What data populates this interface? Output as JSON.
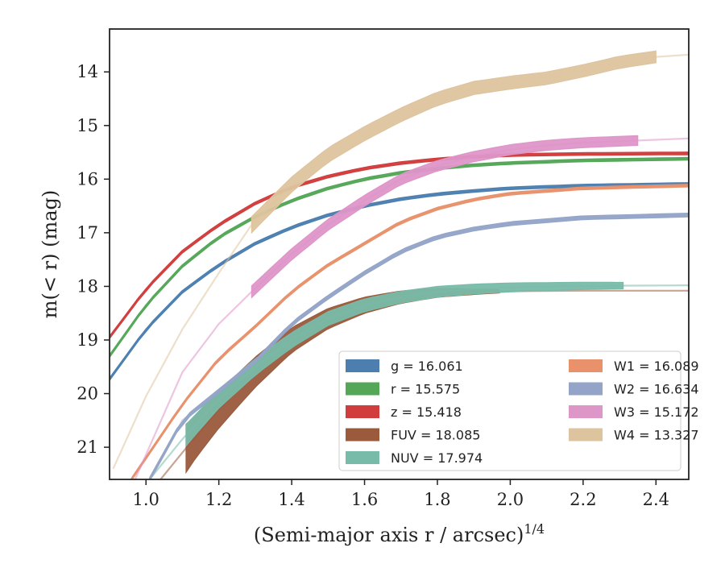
{
  "chart_data": {
    "type": "line",
    "title": "",
    "xlabel": "(Semi-major axis r / arcsec)",
    "xlabel_exponent": "1/4",
    "ylabel": "m(< r) (mag)",
    "xlim": [
      0.9,
      2.49
    ],
    "ylim": [
      21.6,
      13.2
    ],
    "y_inverted": true,
    "x_ticks": [
      1.0,
      1.2,
      1.4,
      1.6,
      1.8,
      2.0,
      2.2,
      2.4
    ],
    "x_tick_labels": [
      "1.0",
      "1.2",
      "1.4",
      "1.6",
      "1.8",
      "2.0",
      "2.2",
      "2.4"
    ],
    "y_ticks": [
      14,
      15,
      16,
      17,
      18,
      19,
      20,
      21
    ],
    "y_tick_labels": [
      "14",
      "15",
      "16",
      "17",
      "18",
      "19",
      "20",
      "21"
    ],
    "grid": false,
    "legend_position": "lower-right",
    "legend_columns": 2,
    "series": [
      {
        "name": "g = 16.061",
        "band": "g",
        "total_mag": 16.061,
        "color": "#4c7fb0",
        "fit": [
          [
            0.9,
            19.73
          ],
          [
            1.0,
            18.8
          ],
          [
            1.1,
            18.1
          ],
          [
            1.2,
            17.6
          ],
          [
            1.3,
            17.2
          ],
          [
            1.4,
            16.9
          ],
          [
            1.5,
            16.67
          ],
          [
            1.6,
            16.5
          ],
          [
            1.7,
            16.37
          ],
          [
            1.8,
            16.28
          ],
          [
            1.9,
            16.22
          ],
          [
            2.0,
            16.17
          ],
          [
            2.2,
            16.12
          ],
          [
            2.49,
            16.09
          ]
        ],
        "band_start": 0.9,
        "band_end": 2.49,
        "band_width": [
          0.05,
          0.05
        ]
      },
      {
        "name": "r = 15.575",
        "band": "r",
        "total_mag": 15.575,
        "color": "#55a758",
        "fit": [
          [
            0.9,
            19.3
          ],
          [
            1.0,
            18.35
          ],
          [
            1.1,
            17.62
          ],
          [
            1.2,
            17.08
          ],
          [
            1.3,
            16.7
          ],
          [
            1.4,
            16.4
          ],
          [
            1.5,
            16.17
          ],
          [
            1.6,
            16.0
          ],
          [
            1.7,
            15.88
          ],
          [
            1.8,
            15.8
          ],
          [
            1.9,
            15.74
          ],
          [
            2.0,
            15.7
          ],
          [
            2.2,
            15.65
          ],
          [
            2.49,
            15.62
          ]
        ],
        "band_start": 0.9,
        "band_end": 2.49,
        "band_width": [
          0.05,
          0.05
        ]
      },
      {
        "name": "z = 15.418",
        "band": "z",
        "total_mag": 15.418,
        "color": "#d13d3d",
        "fit": [
          [
            0.9,
            18.95
          ],
          [
            1.0,
            18.05
          ],
          [
            1.1,
            17.35
          ],
          [
            1.2,
            16.85
          ],
          [
            1.3,
            16.45
          ],
          [
            1.4,
            16.15
          ],
          [
            1.5,
            15.95
          ],
          [
            1.6,
            15.8
          ],
          [
            1.7,
            15.7
          ],
          [
            1.8,
            15.63
          ],
          [
            1.9,
            15.58
          ],
          [
            2.0,
            15.55
          ],
          [
            2.2,
            15.53
          ],
          [
            2.49,
            15.52
          ]
        ],
        "band_start": 0.9,
        "band_end": 2.49,
        "band_width": [
          0.05,
          0.05
        ]
      },
      {
        "name": "FUV = 18.085",
        "band": "FUV",
        "total_mag": 18.085,
        "color": "#9b5a3c",
        "fit": [
          [
            1.04,
            21.6
          ],
          [
            1.1,
            21.1
          ],
          [
            1.2,
            20.3
          ],
          [
            1.3,
            19.6
          ],
          [
            1.4,
            19.0
          ],
          [
            1.5,
            18.6
          ],
          [
            1.6,
            18.35
          ],
          [
            1.7,
            18.2
          ],
          [
            1.8,
            18.12
          ],
          [
            1.9,
            18.1
          ],
          [
            2.0,
            18.09
          ],
          [
            2.2,
            18.08
          ],
          [
            2.49,
            18.08
          ]
        ],
        "band_start": 1.11,
        "band_end": 1.97,
        "band_width": [
          0.9,
          0.06
        ]
      },
      {
        "name": "NUV = 17.974",
        "band": "NUV",
        "total_mag": 17.974,
        "color": "#78bba8",
        "fit": [
          [
            1.01,
            21.6
          ],
          [
            1.1,
            20.85
          ],
          [
            1.2,
            20.1
          ],
          [
            1.3,
            19.5
          ],
          [
            1.4,
            19.0
          ],
          [
            1.5,
            18.6
          ],
          [
            1.6,
            18.35
          ],
          [
            1.7,
            18.2
          ],
          [
            1.8,
            18.1
          ],
          [
            1.9,
            18.05
          ],
          [
            2.0,
            18.02
          ],
          [
            2.2,
            17.99
          ],
          [
            2.49,
            17.98
          ]
        ],
        "band_start": 1.11,
        "band_end": 2.31,
        "band_width": [
          0.4,
          0.12
        ]
      },
      {
        "name": "W1 = 16.089",
        "band": "W1",
        "total_mag": 16.089,
        "color": "#e8916b",
        "fit": [
          [
            0.96,
            21.6
          ],
          [
            1.1,
            20.2
          ],
          [
            1.2,
            19.35
          ],
          [
            1.3,
            18.75
          ],
          [
            1.4,
            18.1
          ],
          [
            1.5,
            17.6
          ],
          [
            1.6,
            17.2
          ],
          [
            1.7,
            16.8
          ],
          [
            1.8,
            16.55
          ],
          [
            1.9,
            16.38
          ],
          [
            2.0,
            16.27
          ],
          [
            2.2,
            16.17
          ],
          [
            2.49,
            16.12
          ]
        ],
        "band_start": 0.96,
        "band_end": 2.49,
        "band_width": [
          0.05,
          0.05
        ]
      },
      {
        "name": "W2 = 16.634",
        "band": "W2",
        "total_mag": 16.634,
        "color": "#93a4c8",
        "fit": [
          [
            1.01,
            21.6
          ],
          [
            1.1,
            20.5
          ],
          [
            1.2,
            19.95
          ],
          [
            1.3,
            19.4
          ],
          [
            1.4,
            18.7
          ],
          [
            1.5,
            18.2
          ],
          [
            1.6,
            17.75
          ],
          [
            1.7,
            17.35
          ],
          [
            1.8,
            17.08
          ],
          [
            1.9,
            16.93
          ],
          [
            2.0,
            16.83
          ],
          [
            2.2,
            16.72
          ],
          [
            2.49,
            16.67
          ]
        ],
        "band_start": 1.01,
        "band_end": 2.49,
        "band_width": [
          0.07,
          0.07
        ]
      },
      {
        "name": "W3 = 15.172",
        "band": "W3",
        "total_mag": 15.172,
        "color": "#de95c8",
        "fit": [
          [
            0.97,
            21.6
          ],
          [
            1.1,
            19.6
          ],
          [
            1.2,
            18.7
          ],
          [
            1.29,
            18.1
          ],
          [
            1.4,
            17.4
          ],
          [
            1.5,
            16.85
          ],
          [
            1.6,
            16.4
          ],
          [
            1.7,
            16.0
          ],
          [
            1.8,
            15.75
          ],
          [
            1.9,
            15.58
          ],
          [
            2.0,
            15.45
          ],
          [
            2.1,
            15.37
          ],
          [
            2.2,
            15.32
          ],
          [
            2.35,
            15.28
          ],
          [
            2.49,
            15.24
          ]
        ],
        "band_start": 1.29,
        "band_end": 2.35,
        "band_width": [
          0.22,
          0.18
        ]
      },
      {
        "name": "W4 = 13.327",
        "band": "W4",
        "total_mag": 13.327,
        "color": "#dec49e",
        "fit": [
          [
            0.91,
            21.4
          ],
          [
            1.0,
            20.05
          ],
          [
            1.1,
            18.8
          ],
          [
            1.2,
            17.75
          ],
          [
            1.29,
            16.85
          ],
          [
            1.4,
            16.1
          ],
          [
            1.5,
            15.55
          ],
          [
            1.6,
            15.15
          ],
          [
            1.7,
            14.8
          ],
          [
            1.8,
            14.5
          ],
          [
            1.9,
            14.3
          ],
          [
            2.0,
            14.2
          ],
          [
            2.1,
            14.12
          ],
          [
            2.2,
            13.98
          ],
          [
            2.3,
            13.82
          ],
          [
            2.4,
            13.72
          ],
          [
            2.49,
            13.68
          ]
        ],
        "band_start": 1.29,
        "band_end": 2.4,
        "band_width": [
          0.3,
          0.22
        ]
      }
    ]
  }
}
